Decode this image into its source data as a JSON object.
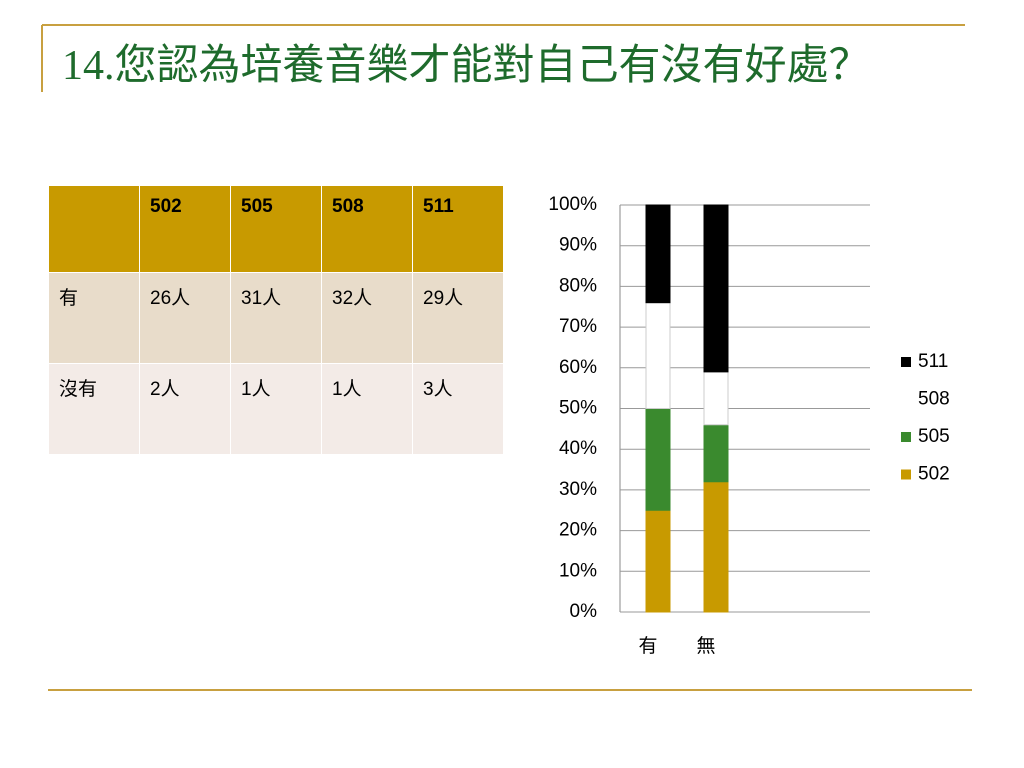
{
  "title": "14.您認為培養音樂才能對自己有沒有好處？",
  "table": {
    "header": [
      "502",
      "505",
      "508",
      "511"
    ],
    "rows": [
      [
        "有",
        "26人",
        "31人",
        "32人",
        "29人"
      ],
      [
        "沒有",
        "2人",
        "1人",
        "1人",
        "3人"
      ]
    ]
  },
  "chart_data": {
    "type": "stacked_bar",
    "categories": [
      "有",
      "無"
    ],
    "series": [
      {
        "name": "502",
        "color": "#c89a00",
        "values": [
          25,
          32
        ]
      },
      {
        "name": "505",
        "color": "#3a8a2e",
        "values": [
          25,
          14
        ]
      },
      {
        "name": "508",
        "color": "#ffffff",
        "values": [
          26,
          13
        ]
      },
      {
        "name": "511",
        "color": "#000000",
        "values": [
          24,
          41
        ]
      }
    ],
    "ylim": [
      0,
      100
    ],
    "yticks": [
      {
        "value": 0,
        "label": "0%"
      },
      {
        "value": 10,
        "label": "10%"
      },
      {
        "value": 20,
        "label": "20%"
      },
      {
        "value": 30,
        "label": "30%"
      },
      {
        "value": 40,
        "label": "40%"
      },
      {
        "value": 50,
        "label": "50%"
      },
      {
        "value": 60,
        "label": "60%"
      },
      {
        "value": 70,
        "label": "70%"
      },
      {
        "value": 80,
        "label": "80%"
      },
      {
        "value": 90,
        "label": "90%"
      },
      {
        "value": 100,
        "label": "100%"
      }
    ],
    "grid": true,
    "legend": "right"
  }
}
